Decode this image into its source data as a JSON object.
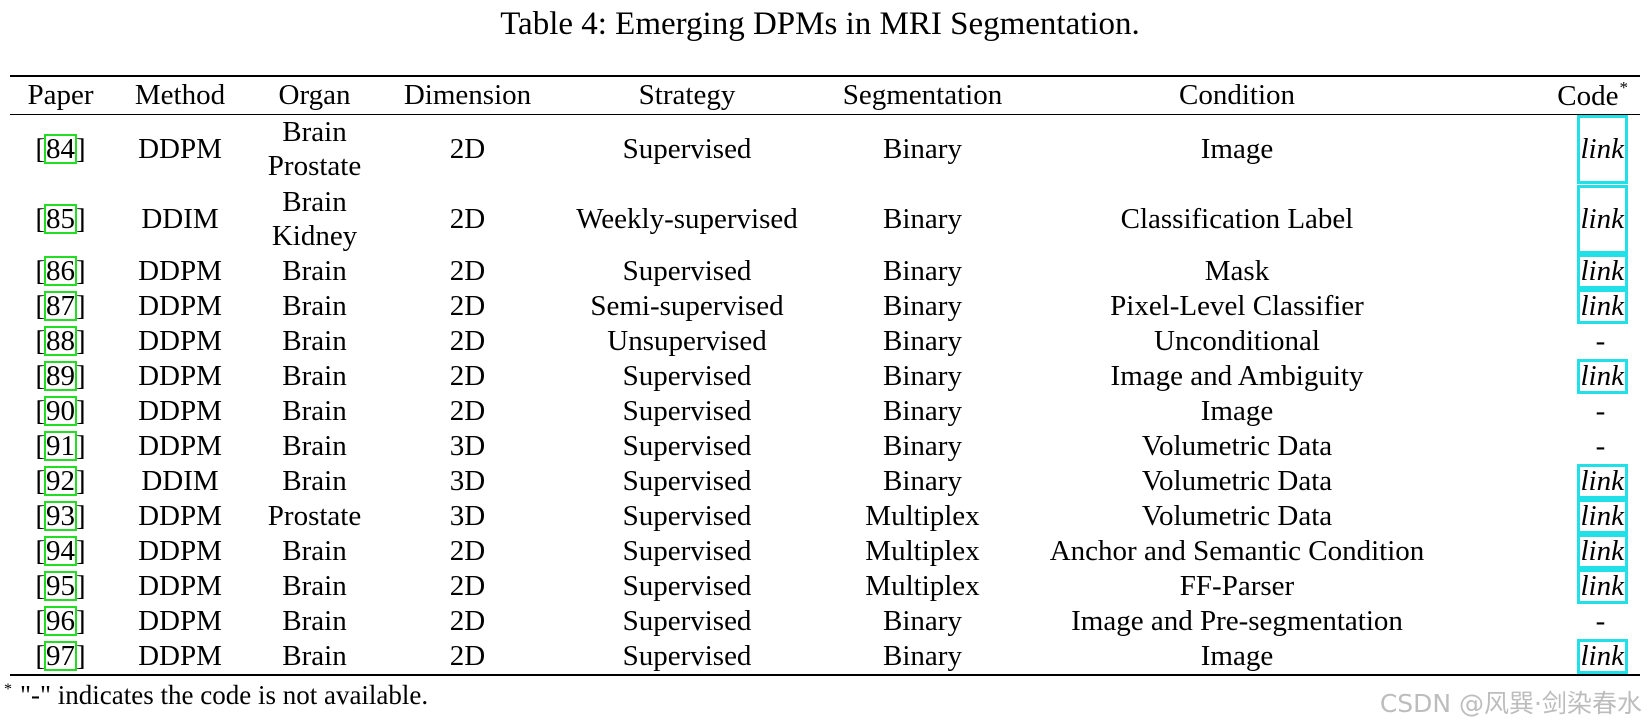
{
  "caption": "Table 4: Emerging DPMs in MRI Segmentation.",
  "headers": {
    "paper": "Paper",
    "method": "Method",
    "organ": "Organ",
    "dimension": "Dimension",
    "strategy": "Strategy",
    "segmentation": "Segmentation",
    "condition": "Condition",
    "code": "Code",
    "code_mark": "*"
  },
  "rows": [
    {
      "ref": "84",
      "method": "DDPM",
      "organ1": "Brain",
      "organ2": "Prostate",
      "dim": "2D",
      "strategy": "Supervised",
      "seg": "Binary",
      "condition": "Image",
      "code": "link"
    },
    {
      "ref": "85",
      "method": "DDIM",
      "organ1": "Brain",
      "organ2": "Kidney",
      "dim": "2D",
      "strategy": "Weekly-supervised",
      "seg": "Binary",
      "condition": "Classification Label",
      "code": "link"
    },
    {
      "ref": "86",
      "method": "DDPM",
      "organ": "Brain",
      "dim": "2D",
      "strategy": "Supervised",
      "seg": "Binary",
      "condition": "Mask",
      "code": "link"
    },
    {
      "ref": "87",
      "method": "DDPM",
      "organ": "Brain",
      "dim": "2D",
      "strategy": "Semi-supervised",
      "seg": "Binary",
      "condition": "Pixel-Level Classifier",
      "code": "link"
    },
    {
      "ref": "88",
      "method": "DDPM",
      "organ": "Brain",
      "dim": "2D",
      "strategy": "Unsupervised",
      "seg": "Binary",
      "condition": "Unconditional",
      "code": "-"
    },
    {
      "ref": "89",
      "method": "DDPM",
      "organ": "Brain",
      "dim": "2D",
      "strategy": "Supervised",
      "seg": "Binary",
      "condition": "Image and Ambiguity",
      "code": "link"
    },
    {
      "ref": "90",
      "method": "DDPM",
      "organ": "Brain",
      "dim": "2D",
      "strategy": "Supervised",
      "seg": "Binary",
      "condition": "Image",
      "code": "-"
    },
    {
      "ref": "91",
      "method": "DDPM",
      "organ": "Brain",
      "dim": "3D",
      "strategy": "Supervised",
      "seg": "Binary",
      "condition": "Volumetric Data",
      "code": "-"
    },
    {
      "ref": "92",
      "method": "DDIM",
      "organ": "Brain",
      "dim": "3D",
      "strategy": "Supervised",
      "seg": "Binary",
      "condition": "Volumetric Data",
      "code": "link"
    },
    {
      "ref": "93",
      "method": "DDPM",
      "organ": "Prostate",
      "dim": "3D",
      "strategy": "Supervised",
      "seg": "Multiplex",
      "condition": "Volumetric Data",
      "code": "link"
    },
    {
      "ref": "94",
      "method": "DDPM",
      "organ": "Brain",
      "dim": "2D",
      "strategy": "Supervised",
      "seg": "Multiplex",
      "condition": "Anchor and Semantic Condition",
      "code": "link"
    },
    {
      "ref": "95",
      "method": "DDPM",
      "organ": "Brain",
      "dim": "2D",
      "strategy": "Supervised",
      "seg": "Multiplex",
      "condition": "FF-Parser",
      "code": "link"
    },
    {
      "ref": "96",
      "method": "DDPM",
      "organ": "Brain",
      "dim": "2D",
      "strategy": "Supervised",
      "seg": "Binary",
      "condition": "Image and Pre-segmentation",
      "code": "-"
    },
    {
      "ref": "97",
      "method": "DDPM",
      "organ": "Brain",
      "dim": "2D",
      "strategy": "Supervised",
      "seg": "Binary",
      "condition": "Image",
      "code": "link"
    }
  ],
  "footnote": {
    "mark": "*",
    "text": "\"-\" indicates the code is not available."
  },
  "watermark": "CSDN @风巽·剑染春水",
  "colors": {
    "citation_box": "#22dd22",
    "link_box": "#22e0e8"
  }
}
